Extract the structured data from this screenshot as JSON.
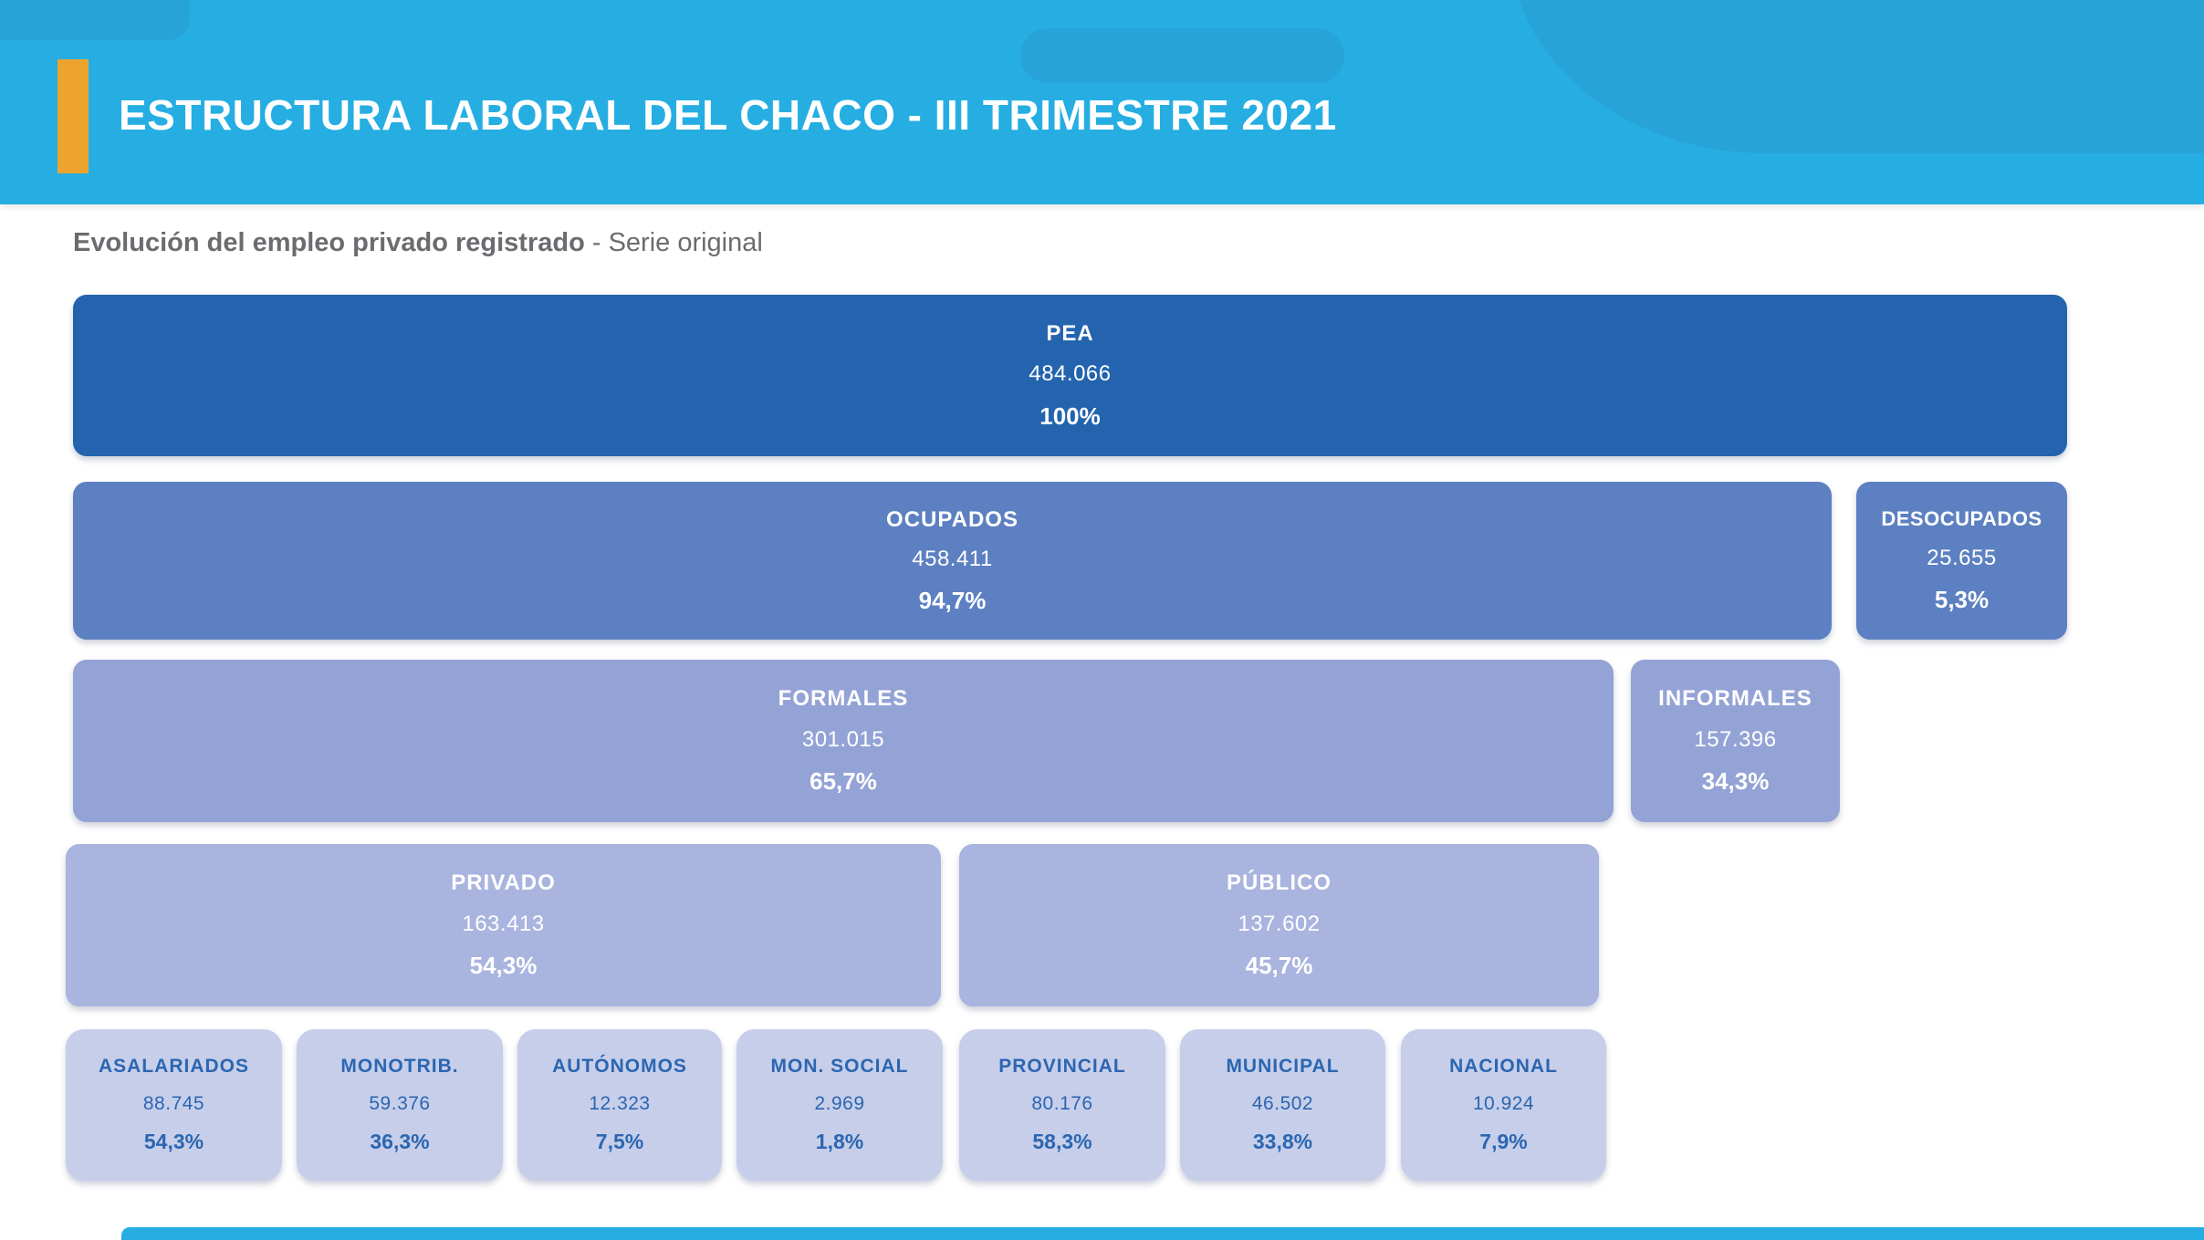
{
  "header": {
    "title": "ESTRUCTURA LABORAL DEL CHACO - III TRIMESTRE 2021"
  },
  "subtitle": {
    "bold": "Evolución del empleo privado registrado",
    "regular": " - Serie original"
  },
  "colors": {
    "banner_cyan": "#26AEE3",
    "banner_decor_blue": "#28A3D8",
    "accent_orange": "#EDA42F",
    "level1_blue": "#2464AF",
    "level2_blue": "#5C80C2",
    "level3_blue": "#94A3D6",
    "level4_blue": "#A9B4DF",
    "level5_fill": "#C7CEEA",
    "level5_text_blue": "#2B66B1",
    "subtitle_gray": "#6A6C6F"
  },
  "chart_data": {
    "type": "bar",
    "title": "ESTRUCTURA LABORAL DEL CHACO - III TRIMESTRE 2021",
    "subtitle": "Evolución del empleo privado registrado - Serie original",
    "layout": "hierarchical cascade, bar width proportional to share, 5 levels",
    "rows": [
      {
        "level": 1,
        "boxes": [
          {
            "label": "PEA",
            "value": "484.066",
            "pct": "100%"
          }
        ]
      },
      {
        "level": 2,
        "parent": "PEA",
        "boxes": [
          {
            "label": "OCUPADOS",
            "value": "458.411",
            "pct": "94,7%"
          },
          {
            "label": "DESOCUPADOS",
            "value": "25.655",
            "pct": "5,3%"
          }
        ]
      },
      {
        "level": 3,
        "parent": "OCUPADOS",
        "boxes": [
          {
            "label": "FORMALES",
            "value": "301.015",
            "pct": "65,7%"
          },
          {
            "label": "INFORMALES",
            "value": "157.396",
            "pct": "34,3%"
          }
        ]
      },
      {
        "level": 4,
        "parent": "FORMALES",
        "boxes": [
          {
            "label": "PRIVADO",
            "value": "163.413",
            "pct": "54,3%"
          },
          {
            "label": "PÚBLICO",
            "value": "137.602",
            "pct": "45,7%"
          }
        ]
      },
      {
        "level": 5,
        "parent": "PRIVADO / PÚBLICO",
        "boxes": [
          {
            "label": "ASALARIADOS",
            "value": "88.745",
            "pct": "54,3%"
          },
          {
            "label": "MONOTRIB.",
            "value": "59.376",
            "pct": "36,3%"
          },
          {
            "label": "AUTÓNOMOS",
            "value": "12.323",
            "pct": "7,5%"
          },
          {
            "label": "MON. SOCIAL",
            "value": "2.969",
            "pct": "1,8%"
          },
          {
            "label": "PROVINCIAL",
            "value": "80.176",
            "pct": "58,3%"
          },
          {
            "label": "MUNICIPAL",
            "value": "46.502",
            "pct": "33,8%"
          },
          {
            "label": "NACIONAL",
            "value": "10.924",
            "pct": "7,9%"
          }
        ]
      }
    ]
  }
}
